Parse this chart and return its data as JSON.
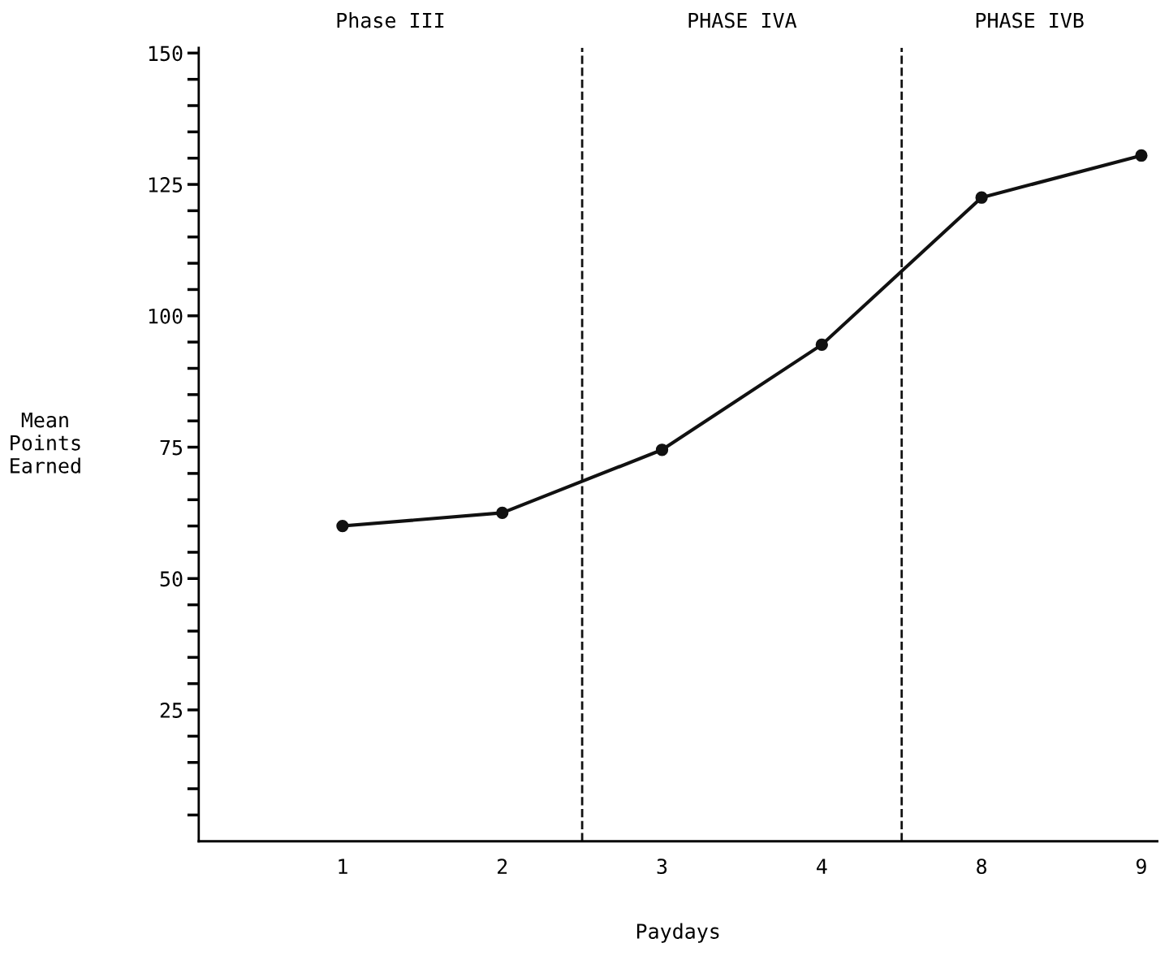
{
  "chart_data": {
    "type": "line",
    "xlabel": "Paydays",
    "ylabel": "Mean\nPoints\nEarned",
    "categories": [
      "1",
      "2",
      "3",
      "4",
      "8",
      "9"
    ],
    "series": [
      {
        "color": "#111111",
        "values": [
          60,
          62.5,
          74.5,
          94.5,
          122.5,
          130.5
        ]
      }
    ],
    "ylim": [
      0,
      151
    ],
    "yticks": [
      {
        "value": 5,
        "label": null
      },
      {
        "value": 10,
        "label": null
      },
      {
        "value": 15,
        "label": null
      },
      {
        "value": 20,
        "label": null
      },
      25,
      {
        "value": 30,
        "label": null
      },
      {
        "value": 35,
        "label": null
      },
      {
        "value": 40,
        "label": null
      },
      {
        "value": 45,
        "label": null
      },
      50,
      {
        "value": 55,
        "label": null
      },
      {
        "value": 60,
        "label": null
      },
      {
        "value": 65,
        "label": null
      },
      {
        "value": 70,
        "label": null
      },
      75,
      {
        "value": 80,
        "label": null
      },
      {
        "value": 85,
        "label": null
      },
      {
        "value": 90,
        "label": null
      },
      {
        "value": 95,
        "label": null
      },
      100,
      {
        "value": 105,
        "label": null
      },
      {
        "value": 110,
        "label": null
      },
      {
        "value": 115,
        "label": null
      },
      {
        "value": 120,
        "label": null
      },
      125,
      {
        "value": 130,
        "label": null
      },
      {
        "value": 135,
        "label": null
      },
      {
        "value": 140,
        "label": null
      },
      {
        "value": 145,
        "label": null
      },
      150
    ],
    "annotations": [
      "Phase III",
      "PHASE IVA",
      "PHASE IVB"
    ],
    "marker": "circle",
    "line_style": "solid",
    "grid": false,
    "legend": false
  }
}
